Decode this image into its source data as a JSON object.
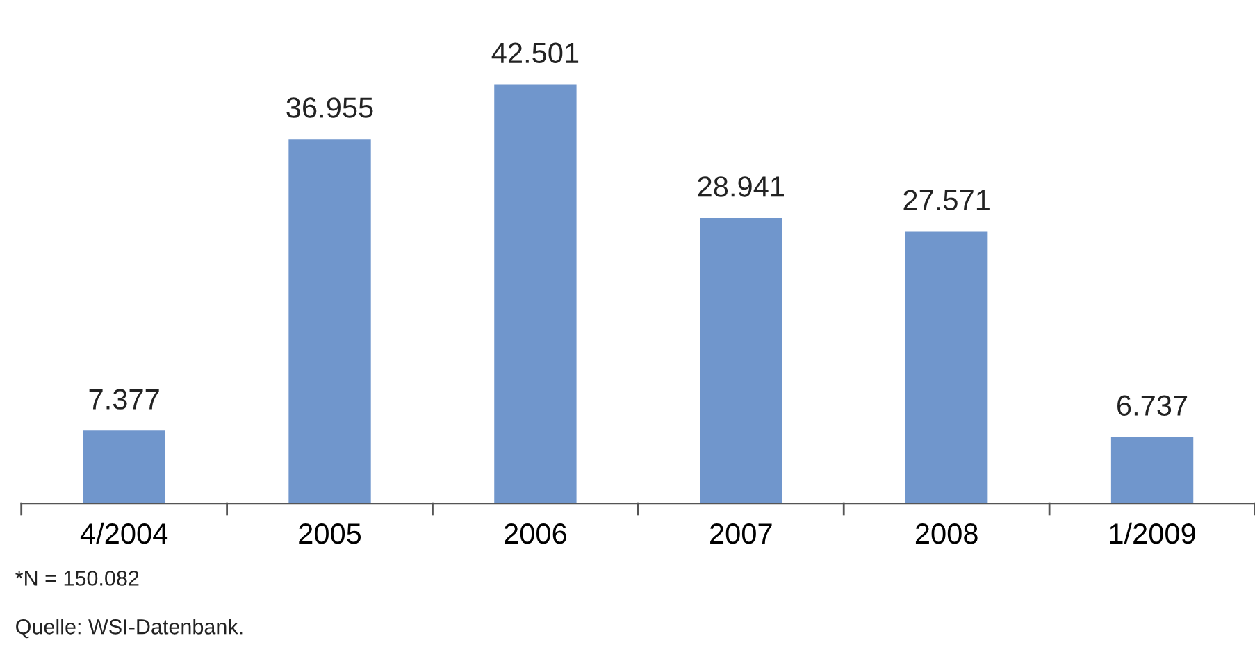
{
  "chart_data": {
    "type": "bar",
    "categories": [
      "4/2004",
      "2005",
      "2006",
      "2007",
      "2008",
      "1/2009"
    ],
    "values": [
      7377,
      36955,
      42501,
      28941,
      27571,
      6737
    ],
    "value_labels": [
      "7.377",
      "36.955",
      "42.501",
      "28.941",
      "27.571",
      "6.737"
    ],
    "color": "#7096cc",
    "annotations": [
      "*N = 150.082",
      "Quelle: WSI-Datenbank."
    ]
  }
}
